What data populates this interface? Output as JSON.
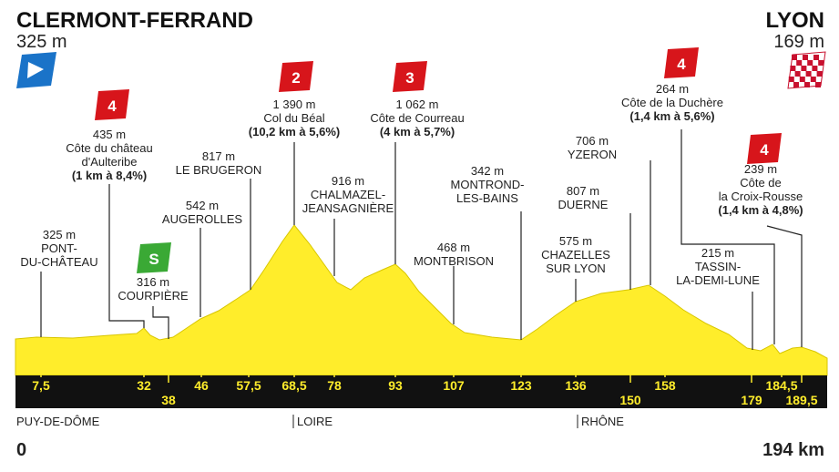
{
  "start": {
    "name": "CLERMONT-FERRAND",
    "altitude": "325 m"
  },
  "finish": {
    "name": "LYON",
    "altitude": "169 m"
  },
  "waypoints": [
    {
      "lines": [
        "325 m",
        "PONT-",
        "DU-CHÂTEAU"
      ]
    },
    {
      "category": "4",
      "lines": [
        "435 m",
        "Côte du château",
        "d'Aulteribe",
        "(1 km à 8,4%)"
      ]
    },
    {
      "category": "S",
      "lines": [
        "316 m",
        "COURPIÈRE"
      ]
    },
    {
      "lines": [
        "542 m",
        "AUGEROLLES"
      ]
    },
    {
      "lines": [
        "817 m",
        "LE BRUGERON"
      ]
    },
    {
      "category": "2",
      "lines": [
        "1 390 m",
        "Col du Béal",
        "(10,2 km à 5,6%)"
      ]
    },
    {
      "lines": [
        "916 m",
        "CHALMAZEL-",
        "JEANSAGNIÈRE"
      ]
    },
    {
      "category": "3",
      "lines": [
        "1 062 m",
        "Côte de Courreau",
        "(4 km à 5,7%)"
      ]
    },
    {
      "lines": [
        "468 m",
        "MONTBRISON"
      ]
    },
    {
      "lines": [
        "342 m",
        "MONTROND-",
        "LES-BAINS"
      ]
    },
    {
      "lines": [
        "575 m",
        "CHAZELLES",
        "SUR LYON"
      ]
    },
    {
      "lines": [
        "807 m",
        "DUERNE"
      ]
    },
    {
      "lines": [
        "706 m",
        "YZERON"
      ]
    },
    {
      "category": "4",
      "lines": [
        "264 m",
        "Côte de la Duchère",
        "(1,4 km à 5,6%)"
      ]
    },
    {
      "category": "4",
      "lines": [
        "239 m",
        "Côte de",
        "la Croix-Rousse",
        "(1,4 km à 4,8%)"
      ]
    },
    {
      "lines": [
        "215 m",
        "TASSIN-",
        "LA-DEMI-LUNE"
      ]
    }
  ],
  "km_markers": [
    "7,5",
    "32",
    "38",
    "46",
    "57,5",
    "68,5",
    "78",
    "93",
    "107",
    "123",
    "136",
    "150",
    "158",
    "179",
    "184,5",
    "189,5"
  ],
  "departments": [
    "PUY-DE-DÔME",
    "LOIRE",
    "RHÔNE"
  ],
  "distance_start": "0",
  "distance_end": "194 km"
}
